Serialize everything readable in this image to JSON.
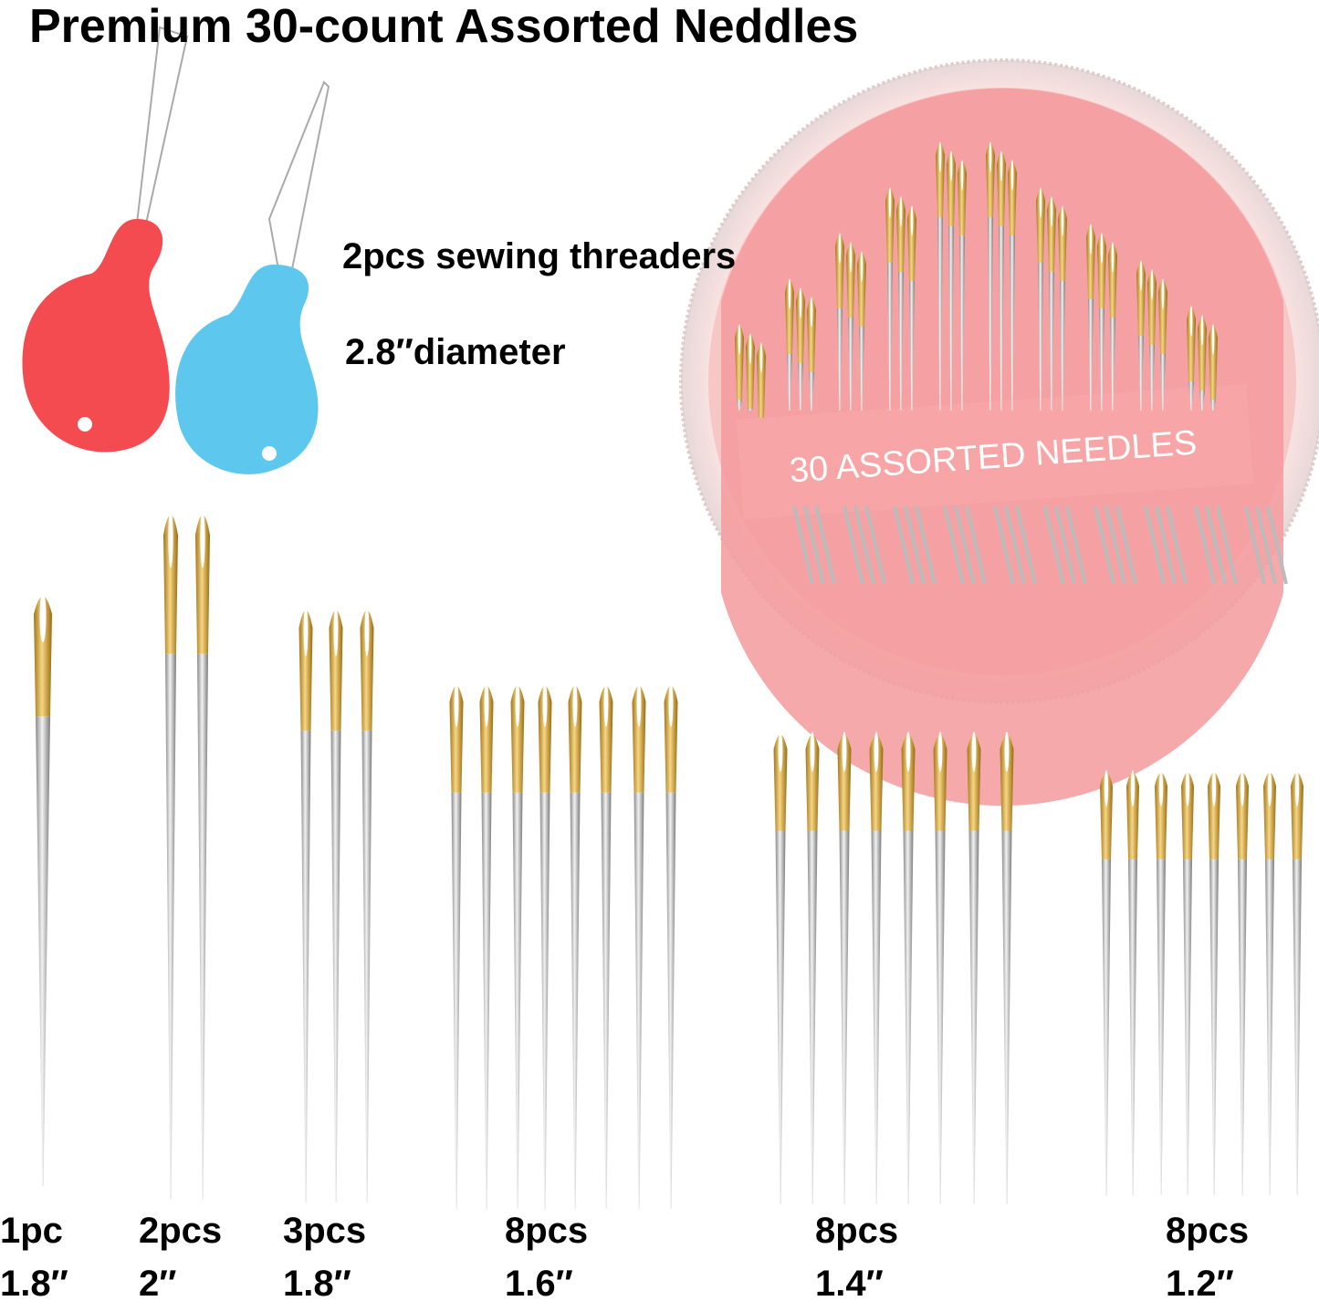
{
  "header": {
    "title": "Premium 30-count Assorted Neddles"
  },
  "threaders": {
    "label": "2pcs sewing threaders",
    "diameter": "2.8″diameter"
  },
  "case": {
    "label": "30 ASSORTED  NEEDLES"
  },
  "groups": [
    {
      "count": "1pc",
      "length": "1.8″"
    },
    {
      "count": "2pcs",
      "length": "2″"
    },
    {
      "count": "3pcs",
      "length": "1.8″"
    },
    {
      "count": "8pcs",
      "length": "1.6″"
    },
    {
      "count": "8pcs",
      "length": "1.4″"
    },
    {
      "count": "8pcs",
      "length": "1.2″"
    }
  ]
}
